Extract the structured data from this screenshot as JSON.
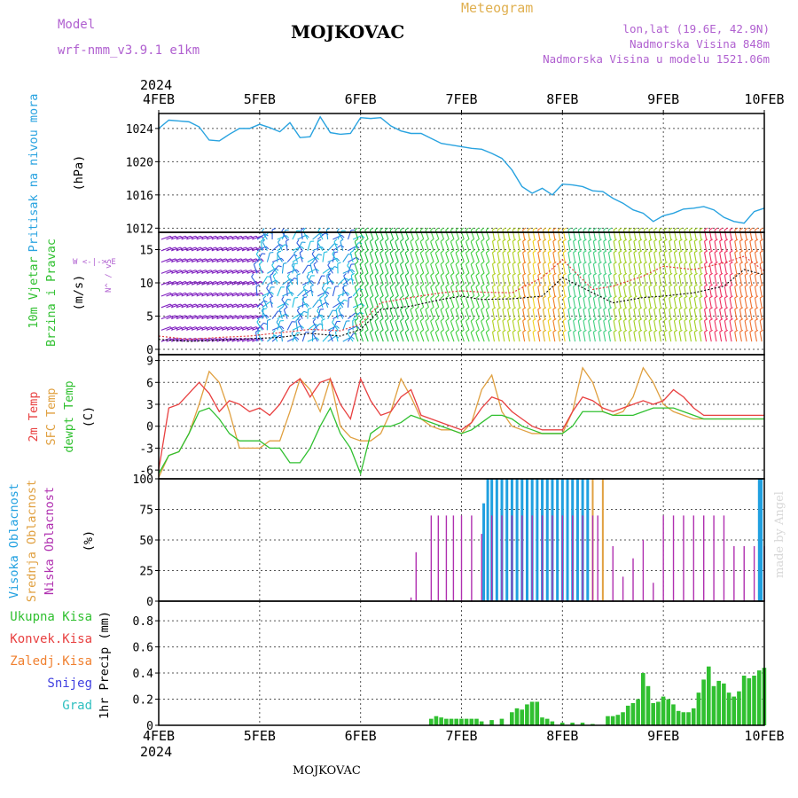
{
  "header": {
    "model_label": "Model",
    "model_name": "wrf-nmm_v3.9.1 e1km",
    "city": "MOJKOVAC",
    "title": "Meteogram",
    "location": "lon,lat (19.6E, 42.9N)",
    "altitude": "Nadmorska Visina 848m",
    "model_altitude": "Nadmorska Visina u modelu 1521.06m"
  },
  "footer": {
    "city": "MOJKOVAC",
    "credit": "made by Angel"
  },
  "colors": {
    "pressure": "#29a3e0",
    "temp2m": "#e84040",
    "sfc_temp": "#e0a040",
    "dewpt": "#30c030",
    "cloud_high": "#20a0e0",
    "cloud_mid": "#e0a040",
    "cloud_low": "#b030b0",
    "precip_total": "#30c030",
    "precip_conv": "#e84040",
    "precip_frozen": "#f08030",
    "snow": "#4040e0",
    "graupel": "#30c0c0",
    "wind_gust": "#e04040",
    "wind_speed": "#000000"
  },
  "chart_data": [
    {
      "type": "line",
      "name": "pressure",
      "title": "",
      "ylabel_lines": [
        "Pritisak na nivou mora",
        "(hPa)"
      ],
      "year_label": "2024",
      "x_ticks": [
        "4FEB",
        "5FEB",
        "6FEB",
        "7FEB",
        "8FEB",
        "9FEB",
        "10FEB"
      ],
      "ylim": [
        1011.5,
        1025.8
      ],
      "yticks": [
        "1012",
        "1016",
        "1020",
        "1024"
      ],
      "series": [
        {
          "x": [
            0,
            0.1,
            0.2,
            0.3,
            0.4,
            0.5,
            0.6,
            0.7,
            0.8,
            0.9,
            1.0,
            1.1,
            1.2,
            1.3,
            1.4,
            1.5,
            1.6,
            1.7,
            1.8,
            1.9,
            2.0,
            2.1,
            2.2,
            2.3,
            2.4,
            2.5,
            2.6,
            2.7,
            2.8,
            2.9,
            3.0,
            3.1,
            3.2,
            3.3,
            3.4,
            3.5,
            3.6,
            3.7,
            3.8,
            3.9,
            4.0,
            4.1,
            4.2,
            4.3,
            4.4,
            4.5,
            4.6,
            4.7,
            4.8,
            4.9,
            5.0,
            5.1,
            5.2,
            5.3,
            5.4,
            5.5,
            5.6,
            5.7,
            5.8,
            5.9,
            6.0
          ],
          "y": [
            1024.0,
            1025.0,
            1024.9,
            1024.8,
            1024.2,
            1022.6,
            1022.5,
            1023.3,
            1024.0,
            1024.0,
            1024.5,
            1024.1,
            1023.6,
            1024.7,
            1022.9,
            1023.0,
            1025.4,
            1023.5,
            1023.3,
            1023.4,
            1025.3,
            1025.2,
            1025.3,
            1024.3,
            1023.7,
            1023.4,
            1023.4,
            1022.8,
            1022.2,
            1022.0,
            1021.8,
            1021.6,
            1021.5,
            1021.0,
            1020.4,
            1019.0,
            1017.0,
            1016.2,
            1016.8,
            1016.0,
            1017.3,
            1017.2,
            1017.0,
            1016.5,
            1016.4,
            1015.6,
            1015.0,
            1014.2,
            1013.8,
            1012.8,
            1013.5,
            1013.8,
            1014.3,
            1014.4,
            1014.6,
            1014.2,
            1013.3,
            1012.8,
            1012.6,
            1014.0,
            1014.4
          ]
        }
      ]
    },
    {
      "type": "line",
      "name": "wind",
      "title": "",
      "ylabel_lines": [
        "10m Vjetar",
        "Brzina i Pravac",
        "(m/s)"
      ],
      "compass_text": "W  <-|->  E",
      "compass_vertical": "N^ / vS",
      "ylim": [
        -0.8,
        17.6
      ],
      "yticks": [
        "0",
        "5",
        "10",
        "15"
      ],
      "series": [
        {
          "name": "speed",
          "x": [
            0,
            0.3,
            0.6,
            0.9,
            1.2,
            1.5,
            1.8,
            2.0,
            2.2,
            2.5,
            2.8,
            3.0,
            3.2,
            3.5,
            3.8,
            4.0,
            4.3,
            4.5,
            4.8,
            5.0,
            5.3,
            5.6,
            5.8,
            6.0
          ],
          "y": [
            1.5,
            1.2,
            1.4,
            1.6,
            1.8,
            2.4,
            2.0,
            3.0,
            6.0,
            6.5,
            7.5,
            8.0,
            7.5,
            7.6,
            8.0,
            10.8,
            8.5,
            7.0,
            7.8,
            8.0,
            8.5,
            9.5,
            12.0,
            11.2
          ]
        },
        {
          "name": "gust",
          "x": [
            0,
            0.3,
            0.6,
            0.9,
            1.2,
            1.5,
            1.8,
            2.0,
            2.2,
            2.5,
            2.8,
            3.0,
            3.2,
            3.5,
            3.8,
            4.0,
            4.3,
            4.5,
            4.8,
            5.0,
            5.3,
            5.6,
            5.8,
            6.0
          ],
          "y": [
            2.0,
            1.5,
            1.8,
            2.0,
            2.5,
            3.0,
            2.8,
            3.8,
            7.0,
            7.8,
            8.5,
            8.8,
            8.6,
            8.5,
            10.8,
            13.5,
            9.0,
            9.5,
            11.0,
            12.5,
            12.0,
            13.0,
            14.0,
            11.8
          ]
        }
      ]
    },
    {
      "type": "line",
      "name": "temperature",
      "title": "",
      "ylabel_lines": [
        "2m Temp",
        "SFC Temp",
        "dewpt Temp",
        "(C)"
      ],
      "ylim": [
        -7.2,
        9.8
      ],
      "yticks": [
        "-6",
        "-3",
        "0",
        "3",
        "6",
        "9"
      ],
      "x": [
        0,
        0.1,
        0.2,
        0.3,
        0.4,
        0.5,
        0.6,
        0.7,
        0.8,
        0.9,
        1.0,
        1.1,
        1.2,
        1.3,
        1.4,
        1.5,
        1.6,
        1.7,
        1.8,
        1.9,
        2.0,
        2.1,
        2.2,
        2.3,
        2.4,
        2.5,
        2.6,
        2.7,
        2.8,
        2.9,
        3.0,
        3.1,
        3.2,
        3.3,
        3.4,
        3.5,
        3.6,
        3.7,
        3.8,
        3.9,
        4.0,
        4.1,
        4.2,
        4.3,
        4.4,
        4.5,
        4.6,
        4.7,
        4.8,
        4.9,
        5.0,
        5.1,
        5.2,
        5.3,
        5.4,
        5.5,
        5.6,
        5.7,
        5.8,
        5.9,
        6.0
      ],
      "series": [
        {
          "name": "2m Temp",
          "y": [
            -6,
            2.5,
            3.0,
            4.5,
            6.0,
            4.5,
            2.0,
            3.5,
            3.0,
            2.0,
            2.5,
            1.5,
            3.0,
            5.5,
            6.5,
            4.0,
            6.0,
            6.5,
            3.0,
            1.0,
            6.5,
            3.5,
            1.5,
            2.0,
            4.0,
            5.0,
            1.5,
            1.0,
            0.5,
            0.0,
            -0.5,
            0.5,
            2.5,
            4.0,
            3.5,
            2.0,
            1.0,
            0.0,
            -0.5,
            -0.5,
            -0.5,
            2.0,
            4.0,
            3.5,
            2.5,
            2.0,
            2.5,
            3.0,
            3.5,
            3.0,
            3.5,
            5.0,
            4.0,
            2.5,
            1.5,
            1.5,
            1.5,
            1.5,
            1.5,
            1.5,
            1.5
          ]
        },
        {
          "name": "SFC Temp",
          "y": [
            -7,
            -4,
            -3.5,
            -1,
            3,
            7.5,
            6,
            2,
            -3,
            -3,
            -3,
            -2,
            -2,
            2,
            6.5,
            5,
            2,
            6.5,
            0,
            -1.5,
            -2,
            -2,
            -1,
            2,
            6.5,
            4,
            1,
            0,
            -0.5,
            -0.5,
            -1,
            0.5,
            5,
            7,
            2,
            0,
            -0.5,
            -1,
            -1,
            -1,
            -1,
            2,
            8,
            6,
            2,
            1.5,
            2,
            4,
            8,
            6,
            3,
            2,
            1.5,
            1,
            1,
            1,
            1,
            1,
            1,
            1,
            1
          ]
        },
        {
          "name": "dewpt Temp",
          "y": [
            -6.5,
            -4,
            -3.5,
            -1,
            2,
            2.5,
            1,
            -1,
            -2,
            -2,
            -2,
            -3,
            -3,
            -5,
            -5,
            -3,
            0,
            2.5,
            -1,
            -3,
            -6.5,
            -1,
            0,
            0,
            0.5,
            1.5,
            1,
            0.5,
            0,
            -0.5,
            -1,
            -0.5,
            0.5,
            1.5,
            1.5,
            1,
            0,
            -0.5,
            -1,
            -1,
            -1,
            0,
            2,
            2,
            2,
            1.5,
            1.5,
            1.5,
            2,
            2.5,
            2.5,
            2.5,
            2,
            1.5,
            1,
            1,
            1,
            1,
            1,
            1,
            1
          ]
        }
      ]
    },
    {
      "type": "bar",
      "name": "cloudiness",
      "title": "",
      "ylabel_lines": [
        "Visoka Oblacnost",
        "Srednja Oblacnost",
        "Niska Oblacnost",
        "(%)"
      ],
      "ylim": [
        0,
        100
      ],
      "yticks": [
        "0",
        "25",
        "50",
        "75",
        "100"
      ],
      "series": [
        {
          "name": "low",
          "x": [
            2.5,
            2.55,
            2.7,
            2.77,
            2.85,
            2.92,
            3.0,
            3.1,
            3.2,
            3.3,
            3.4,
            3.5,
            3.6,
            3.7,
            3.8,
            3.9,
            4.0,
            4.1,
            4.2,
            4.3,
            4.35,
            4.5,
            4.6,
            4.7,
            4.8,
            4.9,
            5.0,
            5.1,
            5.2,
            5.3,
            5.4,
            5.5,
            5.6,
            5.7,
            5.8,
            5.9,
            6.0
          ],
          "y": [
            3,
            40,
            70,
            70,
            70,
            70,
            70,
            70,
            55,
            70,
            70,
            70,
            70,
            70,
            70,
            70,
            70,
            70,
            70,
            70,
            70,
            45,
            20,
            35,
            50,
            15,
            70,
            70,
            70,
            70,
            70,
            70,
            70,
            45,
            45,
            45,
            45
          ]
        },
        {
          "name": "mid",
          "x": [
            3.4,
            3.5,
            3.6,
            3.7,
            3.8,
            3.9,
            4.0,
            4.1,
            4.2,
            4.3,
            4.4
          ],
          "y": [
            100,
            100,
            100,
            100,
            100,
            100,
            100,
            100,
            100,
            100,
            100
          ]
        },
        {
          "name": "high",
          "x": [
            3.22,
            3.26,
            3.3,
            3.35,
            3.4,
            3.45,
            3.5,
            3.55,
            3.6,
            3.65,
            3.7,
            3.75,
            3.8,
            3.85,
            3.9,
            3.95,
            4.0,
            4.05,
            4.1,
            4.15,
            4.2,
            4.25,
            5.95,
            5.97
          ],
          "y": [
            80,
            100,
            100,
            100,
            100,
            100,
            100,
            100,
            100,
            100,
            100,
            100,
            100,
            100,
            100,
            100,
            100,
            100,
            100,
            100,
            100,
            100,
            100,
            100
          ]
        }
      ]
    },
    {
      "type": "bar",
      "name": "precipitation",
      "title": "",
      "ylabel_lines": [
        "1hr Precip (mm)"
      ],
      "legend": [
        "Ukupna Kisa",
        "Konvek.Kisa",
        "Zaledj.Kisa",
        "Snijeg",
        "Grad"
      ],
      "year_label": "2024",
      "x_ticks": [
        "4FEB",
        "5FEB",
        "6FEB",
        "7FEB",
        "8FEB",
        "9FEB",
        "10FEB"
      ],
      "ylim": [
        0,
        0.95
      ],
      "yticks": [
        "0",
        "0.2",
        "0.4",
        "0.6",
        "0.8"
      ],
      "series": [
        {
          "name": "Ukupna Kisa",
          "x": [
            2.7,
            2.75,
            2.8,
            2.85,
            2.9,
            2.95,
            3.0,
            3.05,
            3.1,
            3.15,
            3.2,
            3.3,
            3.4,
            3.5,
            3.55,
            3.6,
            3.65,
            3.7,
            3.75,
            3.8,
            3.85,
            3.9,
            4.0,
            4.1,
            4.2,
            4.3,
            4.45,
            4.5,
            4.55,
            4.6,
            4.65,
            4.7,
            4.75,
            4.8,
            4.85,
            4.9,
            4.95,
            5.0,
            5.05,
            5.1,
            5.15,
            5.2,
            5.25,
            5.3,
            5.35,
            5.4,
            5.45,
            5.5,
            5.55,
            5.6,
            5.65,
            5.7,
            5.75,
            5.8,
            5.85,
            5.9,
            5.95,
            6.0
          ],
          "y": [
            0.05,
            0.07,
            0.06,
            0.05,
            0.05,
            0.05,
            0.05,
            0.05,
            0.05,
            0.05,
            0.03,
            0.04,
            0.05,
            0.1,
            0.13,
            0.12,
            0.16,
            0.18,
            0.18,
            0.06,
            0.05,
            0.03,
            0.02,
            0.02,
            0.02,
            0.01,
            0.07,
            0.07,
            0.08,
            0.1,
            0.15,
            0.17,
            0.2,
            0.4,
            0.3,
            0.17,
            0.18,
            0.22,
            0.2,
            0.16,
            0.11,
            0.1,
            0.1,
            0.13,
            0.25,
            0.35,
            0.45,
            0.3,
            0.34,
            0.32,
            0.25,
            0.22,
            0.26,
            0.38,
            0.36,
            0.38,
            0.42,
            0.44
          ]
        }
      ]
    }
  ]
}
